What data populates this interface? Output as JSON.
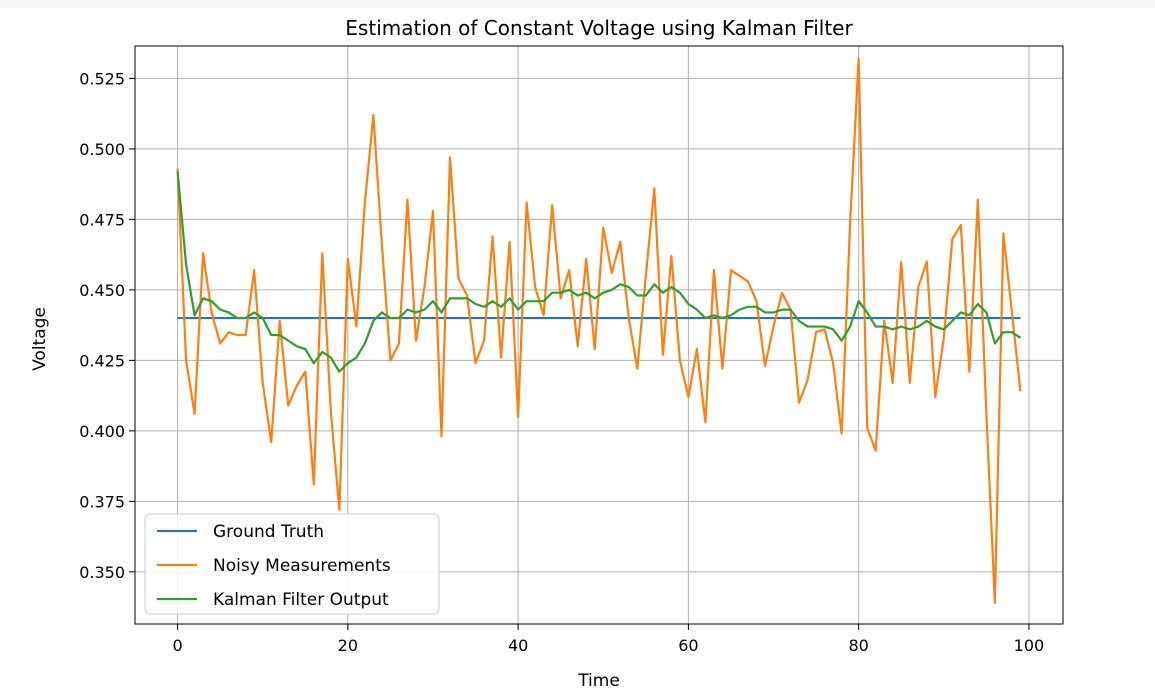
{
  "chart_data": {
    "type": "line",
    "title": "Estimation of Constant Voltage using Kalman Filter",
    "xlabel": "Time",
    "ylabel": "Voltage",
    "xlim": [
      -5,
      104
    ],
    "ylim": [
      0.3315,
      0.5365
    ],
    "x_ticks": [
      0,
      20,
      40,
      60,
      80,
      100
    ],
    "x_tick_labels": [
      "0",
      "20",
      "40",
      "60",
      "80",
      "100"
    ],
    "y_ticks": [
      0.35,
      0.375,
      0.4,
      0.425,
      0.45,
      0.475,
      0.5,
      0.525
    ],
    "y_tick_labels": [
      "0.350",
      "0.375",
      "0.400",
      "0.425",
      "0.450",
      "0.475",
      "0.500",
      "0.525"
    ],
    "grid": true,
    "legend_position": "lower-left",
    "x_start": 0,
    "x_step": 1,
    "series": [
      {
        "name": "Ground Truth",
        "color": "#1f77b4",
        "values": [
          0.44,
          0.44,
          0.44,
          0.44,
          0.44,
          0.44,
          0.44,
          0.44,
          0.44,
          0.44,
          0.44,
          0.44,
          0.44,
          0.44,
          0.44,
          0.44,
          0.44,
          0.44,
          0.44,
          0.44,
          0.44,
          0.44,
          0.44,
          0.44,
          0.44,
          0.44,
          0.44,
          0.44,
          0.44,
          0.44,
          0.44,
          0.44,
          0.44,
          0.44,
          0.44,
          0.44,
          0.44,
          0.44,
          0.44,
          0.44,
          0.44,
          0.44,
          0.44,
          0.44,
          0.44,
          0.44,
          0.44,
          0.44,
          0.44,
          0.44,
          0.44,
          0.44,
          0.44,
          0.44,
          0.44,
          0.44,
          0.44,
          0.44,
          0.44,
          0.44,
          0.44,
          0.44,
          0.44,
          0.44,
          0.44,
          0.44,
          0.44,
          0.44,
          0.44,
          0.44,
          0.44,
          0.44,
          0.44,
          0.44,
          0.44,
          0.44,
          0.44,
          0.44,
          0.44,
          0.44,
          0.44,
          0.44,
          0.44,
          0.44,
          0.44,
          0.44,
          0.44,
          0.44,
          0.44,
          0.44,
          0.44,
          0.44,
          0.44,
          0.44,
          0.44,
          0.44,
          0.44,
          0.44,
          0.44,
          0.44
        ]
      },
      {
        "name": "Noisy Measurements",
        "color": "#ff7f0e",
        "values": [
          0.493,
          0.425,
          0.406,
          0.463,
          0.442,
          0.431,
          0.435,
          0.434,
          0.434,
          0.457,
          0.417,
          0.396,
          0.439,
          0.409,
          0.416,
          0.421,
          0.381,
          0.463,
          0.407,
          0.372,
          0.461,
          0.437,
          0.481,
          0.512,
          0.466,
          0.425,
          0.431,
          0.482,
          0.432,
          0.451,
          0.478,
          0.398,
          0.497,
          0.454,
          0.448,
          0.424,
          0.432,
          0.469,
          0.426,
          0.467,
          0.405,
          0.481,
          0.451,
          0.441,
          0.48,
          0.447,
          0.457,
          0.43,
          0.461,
          0.429,
          0.472,
          0.456,
          0.467,
          0.44,
          0.422,
          0.455,
          0.486,
          0.427,
          0.462,
          0.425,
          0.412,
          0.429,
          0.403,
          0.457,
          0.422,
          0.457,
          0.455,
          0.453,
          0.446,
          0.423,
          0.437,
          0.449,
          0.443,
          0.41,
          0.418,
          0.435,
          0.436,
          0.424,
          0.399,
          0.474,
          0.532,
          0.401,
          0.393,
          0.439,
          0.417,
          0.46,
          0.417,
          0.451,
          0.46,
          0.412,
          0.433,
          0.468,
          0.473,
          0.421,
          0.482,
          0.406,
          0.339,
          0.47,
          0.442,
          0.414
        ]
      },
      {
        "name": "Kalman Filter Output",
        "color": "#2ca02c",
        "values": [
          0.492,
          0.459,
          0.441,
          0.447,
          0.446,
          0.443,
          0.442,
          0.44,
          0.44,
          0.442,
          0.44,
          0.434,
          0.434,
          0.432,
          0.43,
          0.429,
          0.424,
          0.428,
          0.426,
          0.421,
          0.424,
          0.426,
          0.431,
          0.439,
          0.442,
          0.44,
          0.44,
          0.443,
          0.442,
          0.443,
          0.446,
          0.442,
          0.447,
          0.447,
          0.447,
          0.445,
          0.444,
          0.446,
          0.444,
          0.447,
          0.443,
          0.446,
          0.446,
          0.446,
          0.449,
          0.449,
          0.45,
          0.448,
          0.449,
          0.447,
          0.449,
          0.45,
          0.452,
          0.451,
          0.448,
          0.448,
          0.452,
          0.449,
          0.451,
          0.449,
          0.445,
          0.443,
          0.44,
          0.441,
          0.44,
          0.441,
          0.443,
          0.444,
          0.444,
          0.442,
          0.442,
          0.443,
          0.443,
          0.439,
          0.437,
          0.437,
          0.437,
          0.436,
          0.432,
          0.437,
          0.446,
          0.442,
          0.437,
          0.437,
          0.436,
          0.437,
          0.436,
          0.437,
          0.439,
          0.437,
          0.436,
          0.439,
          0.442,
          0.441,
          0.445,
          0.442,
          0.431,
          0.435,
          0.435,
          0.433
        ]
      }
    ]
  }
}
